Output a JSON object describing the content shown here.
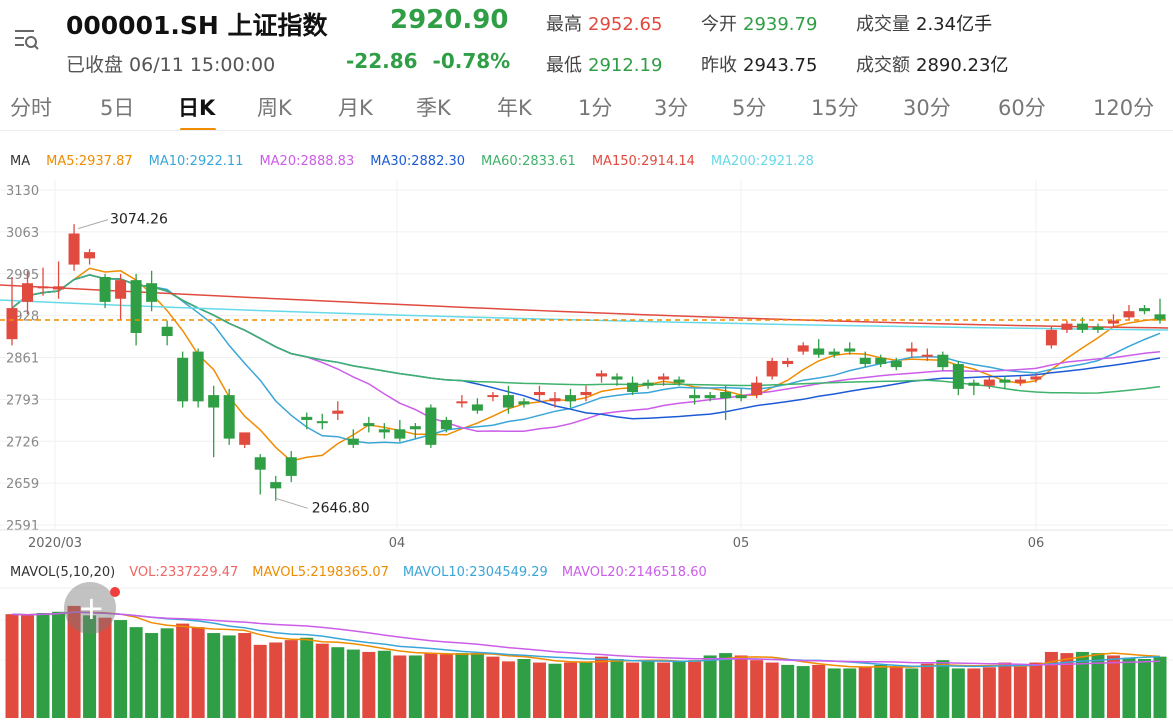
{
  "header": {
    "code": "000001.SH",
    "name": "上证指数",
    "status": "已收盘 06/11 15:00:00",
    "price": "2920.90",
    "change": "-22.86",
    "change_pct": "-0.78%",
    "high_label": "最高",
    "high": "2952.65",
    "low_label": "最低",
    "low": "2912.19",
    "open_label": "今开",
    "open": "2939.79",
    "prev_label": "昨收",
    "prev": "2943.75",
    "volume_label": "成交量",
    "volume": "2.34亿手",
    "amount_label": "成交额",
    "amount": "2890.23亿"
  },
  "colors": {
    "up": "#e04a3f",
    "down": "#2f9e44",
    "accent": "#f08c00"
  },
  "tabs": [
    "分时",
    "5日",
    "日K",
    "周K",
    "月K",
    "季K",
    "年K",
    "1分",
    "3分",
    "5分",
    "15分",
    "30分",
    "60分",
    "120分"
  ],
  "active_tab": 2,
  "ma_legend": {
    "label": "MA",
    "items": [
      {
        "text": "MA5:2937.87",
        "color": "#f08c00"
      },
      {
        "text": "MA10:2922.11",
        "color": "#3aa6d8"
      },
      {
        "text": "MA20:2888.83",
        "color": "#cc5de8"
      },
      {
        "text": "MA30:2882.30",
        "color": "#1c5bd6"
      },
      {
        "text": "MA60:2833.61",
        "color": "#3fb26b"
      },
      {
        "text": "MA150:2914.14",
        "color": "#e04a3f"
      },
      {
        "text": "MA200:2921.28",
        "color": "#66d9e8"
      }
    ]
  },
  "vol_legend": {
    "label": "MAVOL(5,10,20)",
    "items": [
      {
        "text": "VOL:2337229.47",
        "color": "#f06565"
      },
      {
        "text": "MAVOL5:2198365.07",
        "color": "#f08c00"
      },
      {
        "text": "MAVOL10:2304549.29",
        "color": "#3aa6d8"
      },
      {
        "text": "MAVOL20:2146518.60",
        "color": "#cc5de8"
      }
    ]
  },
  "chart_data": {
    "type": "candlestick",
    "price_axis": {
      "ticks": [
        "3130",
        "3063",
        "2995",
        "2928",
        "2861",
        "2793",
        "2726",
        "2659",
        "2591"
      ],
      "min": 2591,
      "max": 3130
    },
    "date_labels": [
      "2020/03",
      "04",
      "05",
      "06"
    ],
    "annotations": {
      "high": "3074.26",
      "low": "2646.80"
    },
    "reference_price": 2920.9,
    "candles": [
      [
        2890,
        2990,
        2940,
        2880
      ],
      [
        2950,
        3000,
        2980,
        2930
      ],
      [
        2975,
        3005,
        2975,
        2960
      ],
      [
        2970,
        3015,
        2975,
        2955
      ],
      [
        3010,
        3075,
        3060,
        3000
      ],
      [
        3020,
        3035,
        3030,
        3010
      ],
      [
        2990,
        2995,
        2950,
        2940
      ],
      [
        2955,
        2995,
        2985,
        2920
      ],
      [
        2985,
        2995,
        2900,
        2880
      ],
      [
        2980,
        3000,
        2950,
        2935
      ],
      [
        2910,
        2920,
        2895,
        2880
      ],
      [
        2860,
        2870,
        2790,
        2780
      ],
      [
        2870,
        2875,
        2790,
        2780
      ],
      [
        2800,
        2815,
        2780,
        2700
      ],
      [
        2800,
        2810,
        2730,
        2720
      ],
      [
        2720,
        2735,
        2740,
        2715
      ],
      [
        2700,
        2705,
        2680,
        2640
      ],
      [
        2660,
        2670,
        2650,
        2630
      ],
      [
        2700,
        2710,
        2670,
        2660
      ],
      [
        2765,
        2772,
        2760,
        2745
      ],
      [
        2758,
        2770,
        2755,
        2745
      ],
      [
        2770,
        2790,
        2775,
        2760
      ],
      [
        2730,
        2745,
        2720,
        2715
      ],
      [
        2755,
        2765,
        2750,
        2740
      ],
      [
        2745,
        2755,
        2740,
        2730
      ],
      [
        2745,
        2760,
        2730,
        2725
      ],
      [
        2750,
        2755,
        2745,
        2730
      ],
      [
        2780,
        2785,
        2720,
        2715
      ],
      [
        2760,
        2765,
        2745,
        2740
      ],
      [
        2790,
        2800,
        2790,
        2780
      ],
      [
        2785,
        2795,
        2775,
        2770
      ],
      [
        2800,
        2805,
        2800,
        2790
      ],
      [
        2800,
        2815,
        2780,
        2770
      ],
      [
        2790,
        2795,
        2785,
        2780
      ],
      [
        2800,
        2815,
        2805,
        2790
      ],
      [
        2790,
        2805,
        2795,
        2780
      ],
      [
        2800,
        2810,
        2790,
        2780
      ],
      [
        2800,
        2815,
        2805,
        2790
      ],
      [
        2830,
        2840,
        2835,
        2820
      ],
      [
        2830,
        2835,
        2825,
        2815
      ],
      [
        2820,
        2830,
        2805,
        2800
      ],
      [
        2820,
        2825,
        2815,
        2810
      ],
      [
        2825,
        2835,
        2830,
        2815
      ],
      [
        2825,
        2830,
        2820,
        2815
      ],
      [
        2800,
        2810,
        2795,
        2785
      ],
      [
        2800,
        2805,
        2795,
        2790
      ],
      [
        2805,
        2815,
        2795,
        2760
      ],
      [
        2800,
        2810,
        2795,
        2790
      ],
      [
        2800,
        2830,
        2820,
        2795
      ],
      [
        2830,
        2860,
        2855,
        2825
      ],
      [
        2850,
        2860,
        2855,
        2845
      ],
      [
        2870,
        2885,
        2880,
        2865
      ],
      [
        2875,
        2890,
        2865,
        2860
      ],
      [
        2870,
        2875,
        2865,
        2860
      ],
      [
        2875,
        2885,
        2870,
        2865
      ],
      [
        2860,
        2870,
        2850,
        2845
      ],
      [
        2860,
        2865,
        2850,
        2845
      ],
      [
        2855,
        2860,
        2845,
        2840
      ],
      [
        2870,
        2885,
        2875,
        2860
      ],
      [
        2865,
        2875,
        2865,
        2855
      ],
      [
        2865,
        2870,
        2845,
        2840
      ],
      [
        2850,
        2855,
        2810,
        2800
      ],
      [
        2820,
        2825,
        2815,
        2800
      ],
      [
        2815,
        2830,
        2825,
        2810
      ],
      [
        2825,
        2830,
        2820,
        2810
      ],
      [
        2820,
        2830,
        2825,
        2815
      ],
      [
        2825,
        2835,
        2830,
        2820
      ],
      [
        2880,
        2910,
        2905,
        2875
      ],
      [
        2905,
        2920,
        2915,
        2900
      ],
      [
        2915,
        2925,
        2905,
        2900
      ],
      [
        2910,
        2915,
        2905,
        2900
      ],
      [
        2915,
        2930,
        2920,
        2910
      ],
      [
        2925,
        2945,
        2935,
        2920
      ],
      [
        2940,
        2945,
        2935,
        2930
      ],
      [
        2930,
        2955,
        2920,
        2915
      ]
    ],
    "volume": {
      "ticks": [
        "",
        "",
        ""
      ],
      "bars": [
        [
          0.88,
          1
        ],
        [
          0.87,
          1
        ],
        [
          0.89,
          0
        ],
        [
          0.9,
          0
        ],
        [
          0.95,
          1
        ],
        [
          0.87,
          0
        ],
        [
          0.85,
          1
        ],
        [
          0.83,
          0
        ],
        [
          0.77,
          0
        ],
        [
          0.72,
          0
        ],
        [
          0.76,
          0
        ],
        [
          0.8,
          1
        ],
        [
          0.77,
          1
        ],
        [
          0.72,
          0
        ],
        [
          0.7,
          0
        ],
        [
          0.72,
          1
        ],
        [
          0.62,
          1
        ],
        [
          0.64,
          1
        ],
        [
          0.66,
          1
        ],
        [
          0.68,
          0
        ],
        [
          0.63,
          1
        ],
        [
          0.6,
          0
        ],
        [
          0.58,
          0
        ],
        [
          0.56,
          1
        ],
        [
          0.57,
          0
        ],
        [
          0.53,
          1
        ],
        [
          0.53,
          0
        ],
        [
          0.55,
          1
        ],
        [
          0.54,
          1
        ],
        [
          0.55,
          0
        ],
        [
          0.55,
          0
        ],
        [
          0.52,
          1
        ],
        [
          0.48,
          1
        ],
        [
          0.5,
          0
        ],
        [
          0.47,
          1
        ],
        [
          0.46,
          0
        ],
        [
          0.47,
          1
        ],
        [
          0.47,
          0
        ],
        [
          0.52,
          1
        ],
        [
          0.5,
          0
        ],
        [
          0.47,
          1
        ],
        [
          0.49,
          0
        ],
        [
          0.47,
          1
        ],
        [
          0.48,
          0
        ],
        [
          0.49,
          1
        ],
        [
          0.53,
          0
        ],
        [
          0.55,
          0
        ],
        [
          0.53,
          1
        ],
        [
          0.49,
          1
        ],
        [
          0.47,
          1
        ],
        [
          0.45,
          0
        ],
        [
          0.44,
          0
        ],
        [
          0.45,
          1
        ],
        [
          0.42,
          0
        ],
        [
          0.42,
          0
        ],
        [
          0.43,
          1
        ],
        [
          0.45,
          0
        ],
        [
          0.44,
          1
        ],
        [
          0.42,
          0
        ],
        [
          0.46,
          1
        ],
        [
          0.49,
          0
        ],
        [
          0.42,
          0
        ],
        [
          0.42,
          1
        ],
        [
          0.43,
          1
        ],
        [
          0.47,
          1
        ],
        [
          0.45,
          1
        ],
        [
          0.47,
          1
        ],
        [
          0.56,
          1
        ],
        [
          0.55,
          1
        ],
        [
          0.56,
          0
        ],
        [
          0.55,
          0
        ],
        [
          0.53,
          1
        ],
        [
          0.51,
          0
        ],
        [
          0.5,
          0
        ],
        [
          0.52,
          0
        ]
      ]
    }
  }
}
